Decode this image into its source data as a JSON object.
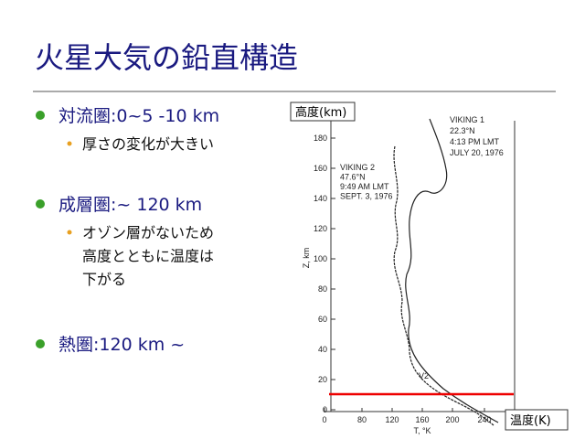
{
  "title": "火星大気の鉛直構造",
  "bullets": [
    {
      "text": "対流圏:0~5 -10 km",
      "sub": [
        "厚さの変化が大きい"
      ]
    },
    {
      "text": "成層圏:~ 120 km",
      "sub": [
        "オゾン層がないため",
        "高度とともに温度は",
        "下がる"
      ]
    },
    {
      "text": "熱圏:120 km ~",
      "sub": []
    }
  ],
  "figure": {
    "y_box": "高度(km)",
    "x_box": "温度(K)",
    "y_axis_label": "Z, km",
    "x_axis_label": "T, °K",
    "yticks": [
      "0",
      "20",
      "40",
      "60",
      "80",
      "100",
      "120",
      "140",
      "160",
      "180"
    ],
    "xticks": [
      "0",
      "80",
      "120",
      "160",
      "200",
      "240"
    ],
    "viking1": [
      "VIKING 1",
      "22.3°N",
      "4:13 PM LMT",
      "JULY 20, 1976"
    ],
    "viking2": [
      "VIKING 2",
      "47.6°N",
      "9:49 AM LMT",
      "SEPT. 3, 1976"
    ],
    "v2_label": "V2"
  }
}
